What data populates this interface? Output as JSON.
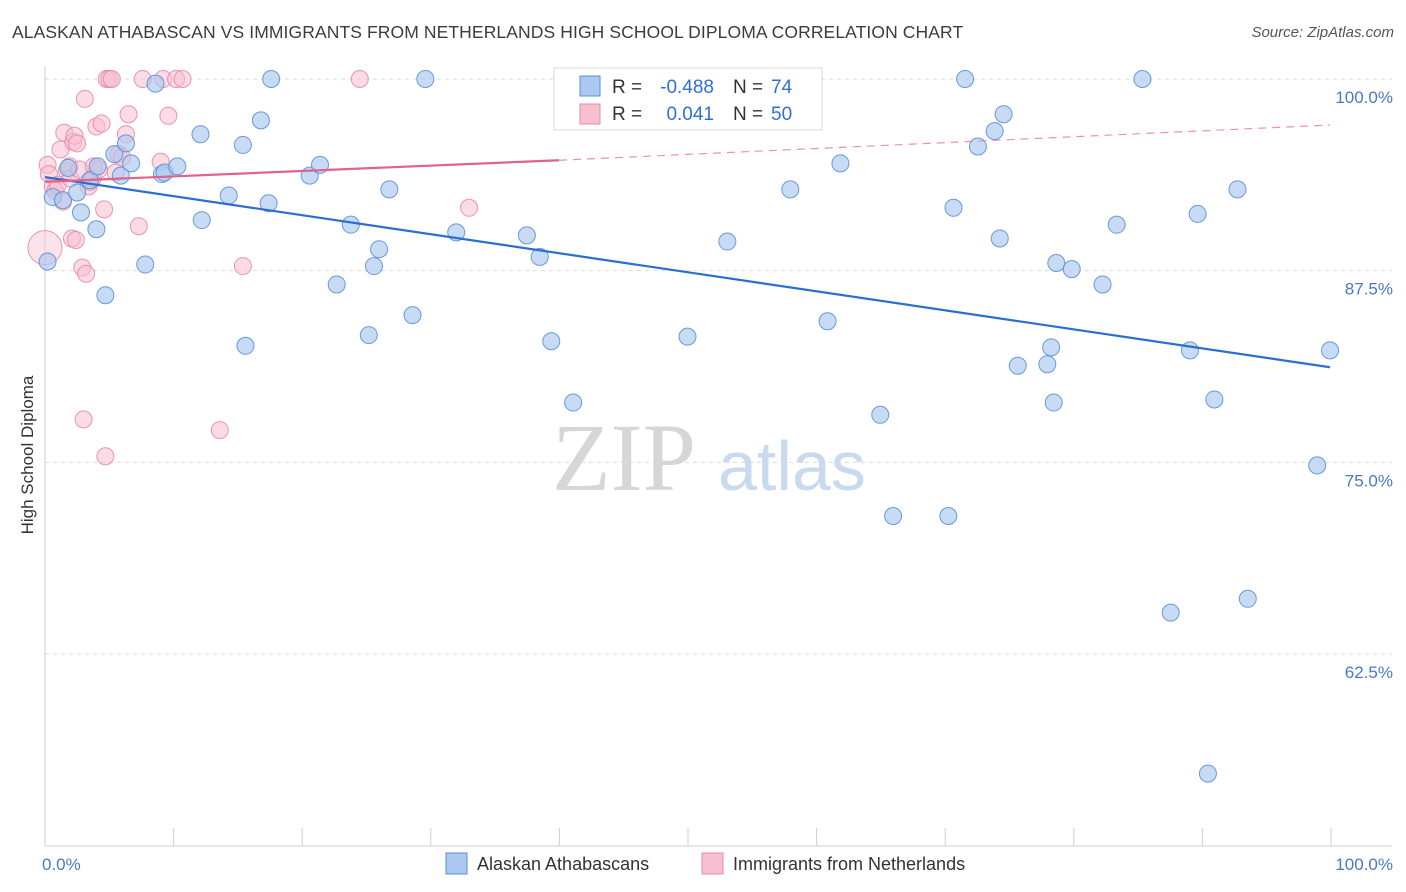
{
  "title": "ALASKAN ATHABASCAN VS IMMIGRANTS FROM NETHERLANDS HIGH SCHOOL DIPLOMA CORRELATION CHART",
  "source": "Source: ZipAtlas.com",
  "colors": {
    "blue_fill": "#aac8f0",
    "blue_stroke": "#5b8fd8",
    "blue_line": "#2a6fd0",
    "pink_fill": "#f7c0d0",
    "pink_stroke": "#e88aa8",
    "pink_line": "#e0628e",
    "grid": "#d9d9d9",
    "tick_label": "#4a78c8"
  },
  "watermark": {
    "zip": "ZIP",
    "atlas": "atlas"
  },
  "legend": {
    "rows": [
      {
        "r_label": "R =",
        "r_value": "-0.488",
        "n_label": "N =",
        "n_value": "74",
        "series": "blue"
      },
      {
        "r_label": "R =",
        "r_value": "0.041",
        "n_label": "N =",
        "n_value": "50",
        "series": "pink"
      }
    ]
  },
  "chart_data": {
    "type": "scatter",
    "title": "ALASKAN ATHABASCAN VS IMMIGRANTS FROM NETHERLANDS HIGH SCHOOL DIPLOMA CORRELATION CHART",
    "xlabel": "",
    "ylabel": "High School Diploma",
    "xlim": [
      0,
      100
    ],
    "ylim": [
      51.5,
      101.5
    ],
    "x_tick_labels": [
      "0.0%",
      "100.0%"
    ],
    "y_ticks": [
      100.0,
      87.5,
      75.0,
      62.5
    ],
    "y_tick_labels": [
      "100.0%",
      "87.5%",
      "75.0%",
      "62.5%"
    ],
    "legend_position": "top-center",
    "series": [
      {
        "name": "Alaskan Athabascans",
        "color": "blue",
        "R": -0.488,
        "N": 74,
        "trend": {
          "x": [
            0,
            100
          ],
          "y": [
            93.6,
            81.2
          ],
          "dashed_to": null
        },
        "points": [
          [
            0.2,
            88.1
          ],
          [
            0.6,
            92.3
          ],
          [
            1.4,
            92.1
          ],
          [
            1.8,
            94.2
          ],
          [
            2.5,
            92.6
          ],
          [
            2.8,
            91.3
          ],
          [
            3.5,
            93.4
          ],
          [
            4.0,
            90.2
          ],
          [
            4.1,
            94.3
          ],
          [
            4.7,
            85.9
          ],
          [
            5.4,
            95.1
          ],
          [
            5.9,
            93.7
          ],
          [
            6.3,
            95.8
          ],
          [
            6.7,
            94.5
          ],
          [
            7.8,
            87.9
          ],
          [
            8.6,
            99.7
          ],
          [
            9.1,
            93.8
          ],
          [
            9.3,
            93.9
          ],
          [
            10.3,
            94.3
          ],
          [
            12.1,
            96.4
          ],
          [
            12.2,
            90.8
          ],
          [
            14.3,
            92.4
          ],
          [
            15.4,
            95.7
          ],
          [
            15.6,
            82.6
          ],
          [
            16.8,
            97.3
          ],
          [
            17.4,
            91.9
          ],
          [
            17.6,
            100.0
          ],
          [
            20.6,
            93.7
          ],
          [
            21.4,
            94.4
          ],
          [
            22.7,
            86.6
          ],
          [
            23.8,
            90.5
          ],
          [
            25.2,
            83.3
          ],
          [
            25.6,
            87.8
          ],
          [
            26.0,
            88.9
          ],
          [
            26.8,
            92.8
          ],
          [
            28.6,
            84.6
          ],
          [
            29.6,
            100.0
          ],
          [
            32.0,
            90.0
          ],
          [
            37.5,
            89.8
          ],
          [
            38.5,
            88.4
          ],
          [
            39.4,
            82.9
          ],
          [
            41.1,
            78.9
          ],
          [
            50.0,
            83.2
          ],
          [
            53.1,
            89.4
          ],
          [
            58.0,
            92.8
          ],
          [
            60.9,
            84.2
          ],
          [
            61.9,
            94.5
          ],
          [
            65.0,
            78.1
          ],
          [
            66.0,
            71.5
          ],
          [
            70.3,
            71.5
          ],
          [
            70.7,
            91.6
          ],
          [
            71.6,
            100.0
          ],
          [
            72.6,
            95.6
          ],
          [
            73.9,
            96.6
          ],
          [
            74.3,
            89.6
          ],
          [
            74.6,
            97.7
          ],
          [
            75.7,
            81.3
          ],
          [
            78.0,
            81.4
          ],
          [
            78.3,
            82.5
          ],
          [
            78.5,
            78.9
          ],
          [
            78.7,
            88.0
          ],
          [
            79.9,
            87.6
          ],
          [
            82.3,
            86.6
          ],
          [
            83.4,
            90.5
          ],
          [
            85.4,
            100.0
          ],
          [
            87.6,
            65.2
          ],
          [
            89.1,
            82.3
          ],
          [
            89.7,
            91.2
          ],
          [
            90.5,
            54.7
          ],
          [
            91.0,
            79.1
          ],
          [
            92.8,
            92.8
          ],
          [
            93.6,
            66.1
          ],
          [
            99.0,
            74.8
          ],
          [
            100.0,
            82.3
          ]
        ]
      },
      {
        "name": "Immigrants from Netherlands",
        "color": "pink",
        "R": 0.041,
        "N": 50,
        "trend": {
          "x": [
            0,
            40,
            100
          ],
          "y": [
            93.3,
            94.7,
            97.0
          ],
          "dashed_from": 40
        },
        "points": [
          [
            0.0,
            89.0
          ],
          [
            0.2,
            94.4
          ],
          [
            0.3,
            93.8
          ],
          [
            0.6,
            93.0
          ],
          [
            0.8,
            92.7
          ],
          [
            1.0,
            93.1
          ],
          [
            1.2,
            95.4
          ],
          [
            1.4,
            92.0
          ],
          [
            1.5,
            96.5
          ],
          [
            1.7,
            94.0
          ],
          [
            1.9,
            94.3
          ],
          [
            2.0,
            93.5
          ],
          [
            2.1,
            89.6
          ],
          [
            2.2,
            95.9
          ],
          [
            2.3,
            96.3
          ],
          [
            2.4,
            89.5
          ],
          [
            2.5,
            95.8
          ],
          [
            2.7,
            94.1
          ],
          [
            2.9,
            87.7
          ],
          [
            3.1,
            98.7
          ],
          [
            3.2,
            87.3
          ],
          [
            3.4,
            93.0
          ],
          [
            3.5,
            93.3
          ],
          [
            3.7,
            93.5
          ],
          [
            3.8,
            94.3
          ],
          [
            4.0,
            96.9
          ],
          [
            4.2,
            94.1
          ],
          [
            4.4,
            97.1
          ],
          [
            4.6,
            91.5
          ],
          [
            4.8,
            100.0
          ],
          [
            5.0,
            100.0
          ],
          [
            5.2,
            100.0
          ],
          [
            5.5,
            93.9
          ],
          [
            5.7,
            95.1
          ],
          [
            6.0,
            94.9
          ],
          [
            6.3,
            96.4
          ],
          [
            6.5,
            97.7
          ],
          [
            7.3,
            90.4
          ],
          [
            7.6,
            100.0
          ],
          [
            9.0,
            94.6
          ],
          [
            9.2,
            100.0
          ],
          [
            9.6,
            97.6
          ],
          [
            10.2,
            100.0
          ],
          [
            10.7,
            100.0
          ],
          [
            3.0,
            77.8
          ],
          [
            4.7,
            75.4
          ],
          [
            13.6,
            77.1
          ],
          [
            15.4,
            87.8
          ],
          [
            24.5,
            100.0
          ],
          [
            33.0,
            91.6
          ]
        ]
      }
    ]
  },
  "bottom_legend": {
    "items": [
      {
        "label": "Alaskan Athabascans",
        "color": "blue"
      },
      {
        "label": "Immigrants from Netherlands",
        "color": "pink"
      }
    ]
  }
}
